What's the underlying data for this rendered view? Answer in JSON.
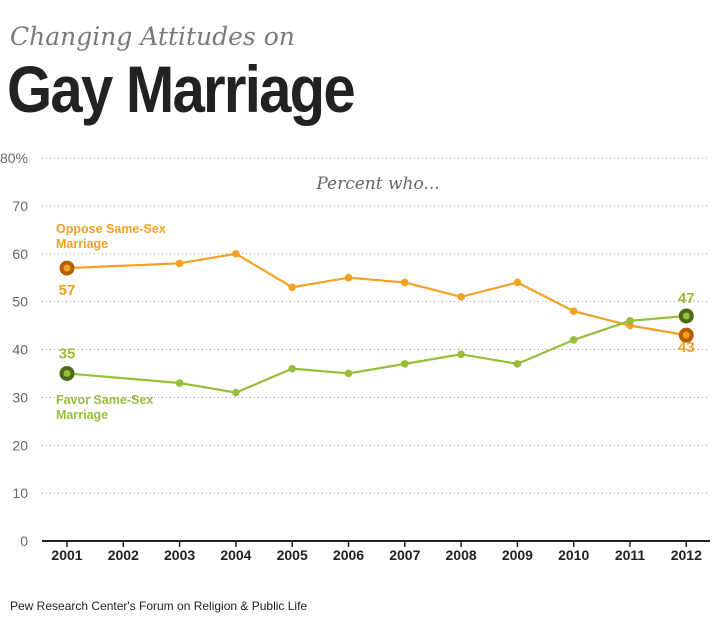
{
  "header": {
    "subtitle": "Changing Attitudes on",
    "title": "Gay Marriage"
  },
  "source": "Pew Research Center's Forum on Religion & Public Life",
  "chart_data": {
    "type": "line",
    "title": "Gay Marriage",
    "subtitle": "Changing Attitudes on",
    "annotation": "Percent who...",
    "x": [
      "2001",
      "2002",
      "2003",
      "2004",
      "2005",
      "2006",
      "2007",
      "2008",
      "2009",
      "2010",
      "2011",
      "2012"
    ],
    "y_ticks": [
      "0",
      "10",
      "20",
      "30",
      "40",
      "50",
      "60",
      "70",
      "80%"
    ],
    "ylim": [
      0,
      80
    ],
    "grid": "horizontal dotted",
    "series": [
      {
        "name_lines": [
          "Oppose Same-Sex",
          "Marriage"
        ],
        "color": "#f2a122",
        "endpoint_color": "#b45f06",
        "x": [
          "2001",
          "2003",
          "2004",
          "2005",
          "2006",
          "2007",
          "2008",
          "2009",
          "2010",
          "2011",
          "2012"
        ],
        "values": [
          57,
          58,
          60,
          53,
          55,
          54,
          51,
          54,
          48,
          45,
          43
        ],
        "start_label": "57",
        "end_label": "43"
      },
      {
        "name_lines": [
          "Favor Same-Sex",
          "Marriage"
        ],
        "color": "#97be3a",
        "endpoint_color": "#4d6b14",
        "x": [
          "2001",
          "2003",
          "2004",
          "2005",
          "2006",
          "2007",
          "2008",
          "2009",
          "2010",
          "2011",
          "2012"
        ],
        "values": [
          35,
          33,
          31,
          36,
          35,
          37,
          39,
          37,
          42,
          46,
          47
        ],
        "start_label": "35",
        "end_label": "47"
      }
    ]
  }
}
